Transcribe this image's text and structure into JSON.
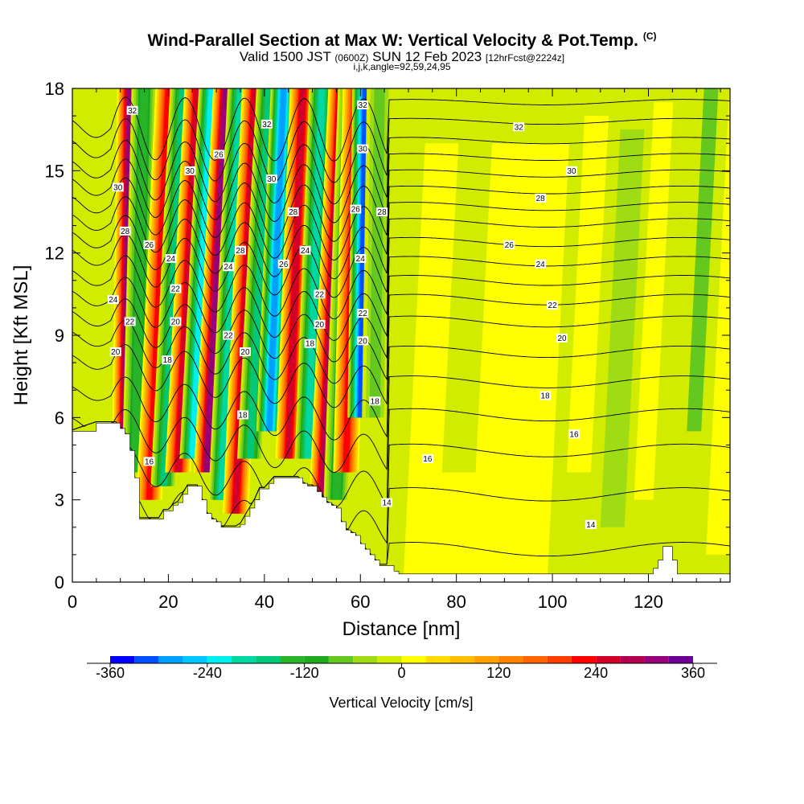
{
  "header": {
    "title": "Wind-Parallel Section at Max W: Vertical Velocity & Pot.Temp.",
    "copyright": "(C)",
    "valid_prefix": "Valid 1500 JST",
    "valid_zulu": "(0600Z)",
    "valid_date": "SUN 12 Feb 2023",
    "forecast": "[12hrFcst@2224z]",
    "indices": "i,j,k,angle=92,59,24,95"
  },
  "chart_data": {
    "type": "heatmap",
    "xlabel": "Distance [nm]",
    "ylabel": "Height [Kft MSL]",
    "xlim": [
      0,
      137
    ],
    "ylim": [
      0,
      18
    ],
    "x_ticks": [
      0,
      20,
      40,
      60,
      80,
      100,
      120
    ],
    "y_ticks": [
      0,
      3,
      6,
      9,
      12,
      15,
      18
    ],
    "colorbar": {
      "label": "Vertical Velocity [cm/s]",
      "tick_values": [
        -360,
        -240,
        -120,
        0,
        120,
        240,
        360
      ],
      "tick_labels": [
        "-360",
        "-240",
        "-120",
        "0",
        "120",
        "240",
        "360"
      ],
      "bins": [
        {
          "from": -360,
          "to": -330,
          "color": "#0000ff"
        },
        {
          "from": -330,
          "to": -300,
          "color": "#0050ff"
        },
        {
          "from": -300,
          "to": -270,
          "color": "#00a0ff"
        },
        {
          "from": -270,
          "to": -240,
          "color": "#00c8ff"
        },
        {
          "from": -240,
          "to": -210,
          "color": "#00f0f0"
        },
        {
          "from": -210,
          "to": -180,
          "color": "#00d8a0"
        },
        {
          "from": -180,
          "to": -150,
          "color": "#00c878"
        },
        {
          "from": -150,
          "to": -120,
          "color": "#28b428"
        },
        {
          "from": -120,
          "to": -90,
          "color": "#1eaa1e"
        },
        {
          "from": -90,
          "to": -60,
          "color": "#64c81e"
        },
        {
          "from": -60,
          "to": -30,
          "color": "#a0dc14"
        },
        {
          "from": -30,
          "to": 0,
          "color": "#d2ec00"
        },
        {
          "from": 0,
          "to": 30,
          "color": "#ffff00"
        },
        {
          "from": 30,
          "to": 60,
          "color": "#ffdc00"
        },
        {
          "from": 60,
          "to": 90,
          "color": "#ffbe00"
        },
        {
          "from": 90,
          "to": 120,
          "color": "#ffa000"
        },
        {
          "from": 120,
          "to": 150,
          "color": "#ff8200"
        },
        {
          "from": 150,
          "to": 180,
          "color": "#ff6400"
        },
        {
          "from": 180,
          "to": 210,
          "color": "#ff3c00"
        },
        {
          "from": 210,
          "to": 240,
          "color": "#ff0000"
        },
        {
          "from": 240,
          "to": 270,
          "color": "#d20028"
        },
        {
          "from": 270,
          "to": 300,
          "color": "#b40050"
        },
        {
          "from": 300,
          "to": 330,
          "color": "#960078"
        },
        {
          "from": 330,
          "to": 360,
          "color": "#6e0096"
        }
      ]
    },
    "background_color": "#d2ec00",
    "terrain_profile": {
      "x": [
        0,
        5,
        9,
        10,
        11,
        12,
        13,
        14,
        15,
        16,
        17,
        18,
        19,
        20,
        21,
        22,
        23,
        24,
        25,
        26,
        27,
        28,
        29,
        30,
        31,
        32,
        33,
        34,
        35,
        36,
        37,
        38,
        39,
        40,
        41,
        42,
        43,
        44,
        45,
        46,
        47,
        48,
        49,
        50,
        51,
        52,
        53,
        54,
        55,
        56,
        57,
        58,
        59,
        60,
        61,
        62,
        63,
        64,
        65,
        66,
        67,
        68,
        69,
        70,
        75,
        80,
        85,
        90,
        95,
        100,
        105,
        110,
        115,
        120,
        121,
        122,
        123,
        124,
        125,
        126,
        130,
        137
      ],
      "y": [
        5.5,
        5.8,
        5.8,
        5.6,
        5.4,
        4.8,
        3.8,
        2.3,
        2.3,
        2.3,
        2.3,
        2.3,
        2.6,
        2.6,
        2.8,
        2.9,
        3.2,
        3.5,
        3.5,
        3.5,
        3.0,
        2.5,
        2.3,
        2.2,
        2.0,
        2.0,
        2.0,
        2.0,
        2.1,
        2.4,
        2.7,
        3.0,
        3.4,
        3.4,
        3.6,
        3.8,
        3.8,
        3.8,
        3.8,
        3.8,
        3.8,
        3.6,
        3.5,
        3.5,
        3.3,
        3.1,
        2.9,
        2.8,
        2.7,
        2.2,
        1.9,
        1.8,
        1.7,
        1.4,
        1.2,
        1.0,
        0.8,
        0.6,
        0.6,
        0.6,
        0.4,
        0.3,
        0.3,
        0.3,
        0.3,
        0.3,
        0.3,
        0.3,
        0.3,
        0.3,
        0.3,
        0.3,
        0.3,
        0.3,
        0.5,
        0.8,
        1.3,
        1.3,
        0.8,
        0.3,
        0.3,
        0.3
      ]
    },
    "velocity_bands": [
      {
        "x_bottom": 11,
        "x_top": 12,
        "y_bottom": 5.5,
        "value": 300
      },
      {
        "x_bottom": 13,
        "x_top": 15,
        "y_bottom": 4.0,
        "value": -150
      },
      {
        "x_bottom": 16,
        "x_top": 20,
        "y_bottom": 3.0,
        "value": 210
      },
      {
        "x_bottom": 19,
        "x_top": 23,
        "y_bottom": 3.5,
        "value": -180
      },
      {
        "x_bottom": 22,
        "x_top": 26,
        "y_bottom": 4.0,
        "value": 240
      },
      {
        "x_bottom": 25,
        "x_top": 29,
        "y_bottom": 4.5,
        "value": -240
      },
      {
        "x_bottom": 28,
        "x_top": 32,
        "y_bottom": 4.0,
        "value": 300
      },
      {
        "x_bottom": 31,
        "x_top": 35,
        "y_bottom": 3.0,
        "value": -210
      },
      {
        "x_bottom": 34,
        "x_top": 38,
        "y_bottom": 2.5,
        "value": 240
      },
      {
        "x_bottom": 37,
        "x_top": 41,
        "y_bottom": 4.5,
        "value": -180
      },
      {
        "x_bottom": 41,
        "x_top": 44,
        "y_bottom": 5.5,
        "value": -300
      },
      {
        "x_bottom": 45,
        "x_top": 48,
        "y_bottom": 4.5,
        "value": 240
      },
      {
        "x_bottom": 49,
        "x_top": 52,
        "y_bottom": 4.5,
        "value": -210
      },
      {
        "x_bottom": 52,
        "x_top": 56,
        "y_bottom": 3.0,
        "value": 270
      },
      {
        "x_bottom": 55,
        "x_top": 58,
        "y_bottom": 3.0,
        "value": -150
      },
      {
        "x_bottom": 57,
        "x_top": 59,
        "y_bottom": 4.0,
        "value": 210
      },
      {
        "x_bottom": 60,
        "x_top": 61,
        "y_bottom": 6.0,
        "value": -330
      },
      {
        "x_bottom": 63,
        "x_top": 64,
        "y_bottom": 6.0,
        "value": -90
      }
    ],
    "weak_patches": [
      {
        "x0": 69,
        "x1": 99,
        "y0": 0.3,
        "y1": 16.0,
        "value": 15
      },
      {
        "x0": 77,
        "x1": 84,
        "y0": 4.0,
        "y1": 17.5,
        "value": -15
      },
      {
        "x0": 103,
        "x1": 108,
        "y0": 4.0,
        "y1": 17.0,
        "value": 15
      },
      {
        "x0": 110,
        "x1": 115,
        "y0": 2.0,
        "y1": 16.5,
        "value": -45
      },
      {
        "x0": 117,
        "x1": 121,
        "y0": 3.0,
        "y1": 17.5,
        "value": 15
      },
      {
        "x0": 128,
        "x1": 131,
        "y0": 5.5,
        "y1": 18.0,
        "value": -90
      },
      {
        "x0": 132,
        "x1": 137,
        "y0": 1.0,
        "y1": 18.0,
        "value": 15
      }
    ],
    "contours": {
      "interval": 1,
      "theta_values": [
        14,
        15,
        16,
        17,
        18,
        19,
        20,
        21,
        22,
        23,
        24,
        25,
        26,
        27,
        28,
        29,
        30,
        31,
        32
      ],
      "right_heights": [
        1.2,
        3.2,
        4.8,
        6.1,
        7.3,
        8.4,
        9.5,
        10.3,
        11.0,
        11.7,
        12.4,
        13.1,
        13.7,
        14.3,
        14.9,
        15.5,
        16.1,
        16.8,
        17.5
      ]
    },
    "contour_labels": [
      {
        "text": "32",
        "x": 12.5,
        "y": 17.2
      },
      {
        "text": "30",
        "x": 9.5,
        "y": 14.4
      },
      {
        "text": "28",
        "x": 11,
        "y": 12.8
      },
      {
        "text": "26",
        "x": 16,
        "y": 12.3
      },
      {
        "text": "24",
        "x": 8.5,
        "y": 10.3
      },
      {
        "text": "24",
        "x": 20.5,
        "y": 11.8
      },
      {
        "text": "22",
        "x": 12,
        "y": 9.5
      },
      {
        "text": "22",
        "x": 21.5,
        "y": 10.7
      },
      {
        "text": "20",
        "x": 9,
        "y": 8.4
      },
      {
        "text": "20",
        "x": 21.5,
        "y": 9.5
      },
      {
        "text": "18",
        "x": 19.8,
        "y": 8.1
      },
      {
        "text": "16",
        "x": 16,
        "y": 4.4
      },
      {
        "text": "30",
        "x": 24.5,
        "y": 15.0
      },
      {
        "text": "26",
        "x": 30.5,
        "y": 15.6
      },
      {
        "text": "28",
        "x": 35,
        "y": 12.1
      },
      {
        "text": "24",
        "x": 32.5,
        "y": 11.5
      },
      {
        "text": "22",
        "x": 32.5,
        "y": 9.0
      },
      {
        "text": "20",
        "x": 36,
        "y": 8.4
      },
      {
        "text": "18",
        "x": 35.5,
        "y": 6.1
      },
      {
        "text": "32",
        "x": 40.5,
        "y": 16.7
      },
      {
        "text": "30",
        "x": 41.5,
        "y": 14.7
      },
      {
        "text": "28",
        "x": 46,
        "y": 13.5
      },
      {
        "text": "26",
        "x": 44,
        "y": 11.6
      },
      {
        "text": "24",
        "x": 48.5,
        "y": 12.1
      },
      {
        "text": "22",
        "x": 51.5,
        "y": 10.5
      },
      {
        "text": "20",
        "x": 51.5,
        "y": 9.4
      },
      {
        "text": "18",
        "x": 49.5,
        "y": 8.7
      },
      {
        "text": "32",
        "x": 60.5,
        "y": 17.4
      },
      {
        "text": "30",
        "x": 60.5,
        "y": 15.8
      },
      {
        "text": "28",
        "x": 64.5,
        "y": 13.5
      },
      {
        "text": "26",
        "x": 59,
        "y": 13.6
      },
      {
        "text": "24",
        "x": 60,
        "y": 11.8
      },
      {
        "text": "22",
        "x": 60.5,
        "y": 9.8
      },
      {
        "text": "20",
        "x": 60.5,
        "y": 8.8
      },
      {
        "text": "18",
        "x": 63,
        "y": 6.6
      },
      {
        "text": "16",
        "x": 74,
        "y": 4.5
      },
      {
        "text": "14",
        "x": 65.5,
        "y": 2.9
      },
      {
        "text": "32",
        "x": 93,
        "y": 16.6
      },
      {
        "text": "30",
        "x": 104,
        "y": 15.0
      },
      {
        "text": "28",
        "x": 97.5,
        "y": 14.0
      },
      {
        "text": "26",
        "x": 91,
        "y": 12.3
      },
      {
        "text": "24",
        "x": 97.5,
        "y": 11.6
      },
      {
        "text": "22",
        "x": 100,
        "y": 10.1
      },
      {
        "text": "20",
        "x": 102,
        "y": 8.9
      },
      {
        "text": "18",
        "x": 98.5,
        "y": 6.8
      },
      {
        "text": "16",
        "x": 104.5,
        "y": 5.4
      },
      {
        "text": "14",
        "x": 108,
        "y": 2.1
      }
    ]
  }
}
